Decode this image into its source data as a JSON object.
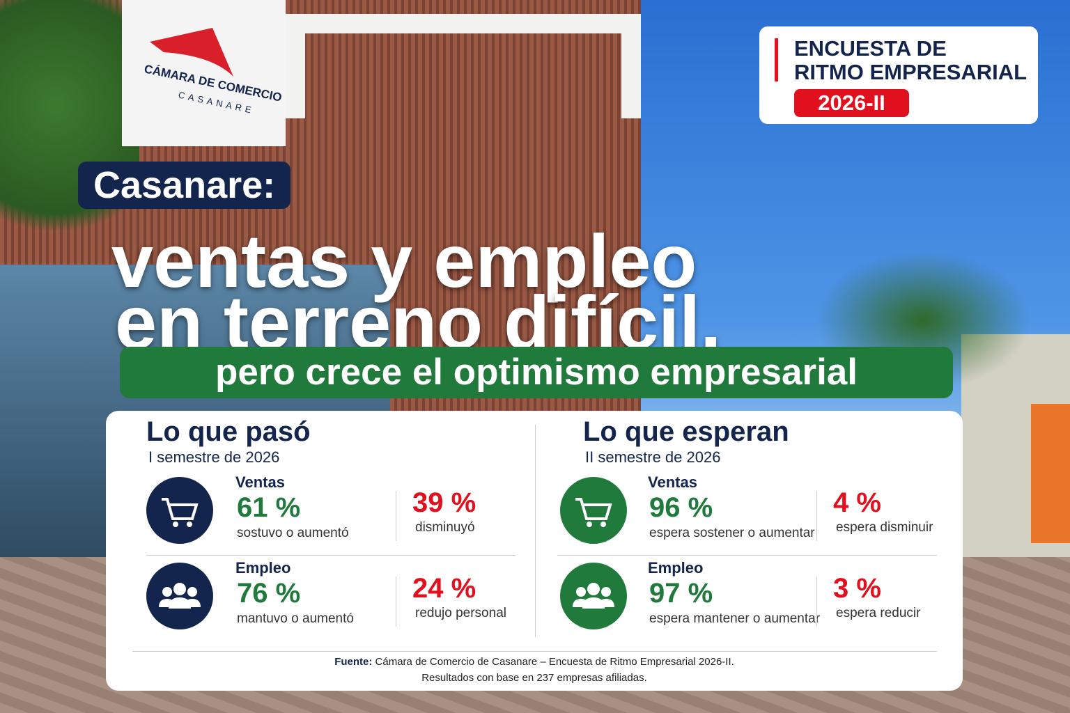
{
  "sign": {
    "line1": "CÁMARA DE COMERCIO",
    "line2": "CASANARE"
  },
  "badge": {
    "line1": "ENCUESTA DE",
    "line2": "RITMO EMPRESARIAL",
    "period": "2026-II"
  },
  "headline": {
    "place": "Casanare:",
    "line1": "ventas y empleo",
    "line2": "en terreno difícil,",
    "line3": "pero crece el optimismo empresarial"
  },
  "panels": [
    {
      "title": "Lo que pasó",
      "subtitle": "I semestre de 2026",
      "rows": [
        {
          "label": "Ventas",
          "main_value": "61 %",
          "main_text": "sostuvo o aumentó",
          "other_value": "39 %",
          "other_text": "disminuyó"
        },
        {
          "label": "Empleo",
          "main_value": "76 %",
          "main_text": "mantuvo o aumentó",
          "other_value": "24 %",
          "other_text": "redujo personal"
        }
      ]
    },
    {
      "title": "Lo que esperan",
      "subtitle": "II semestre de 2026",
      "rows": [
        {
          "label": "Ventas",
          "main_value": "96 %",
          "main_text": "espera sostener o aumentar",
          "other_value": "4 %",
          "other_text": "espera disminuir"
        },
        {
          "label": "Empleo",
          "main_value": "97 %",
          "main_text": "espera mantener o aumentar",
          "other_value": "3 %",
          "other_text": "espera reducir"
        }
      ]
    }
  ],
  "source": {
    "label": "Fuente:",
    "text": "Cámara de Comercio de Casanare – Encuesta de Ritmo Empresarial 2026-II.",
    "note": "Resultados con base en 237 empresas afiliadas."
  }
}
